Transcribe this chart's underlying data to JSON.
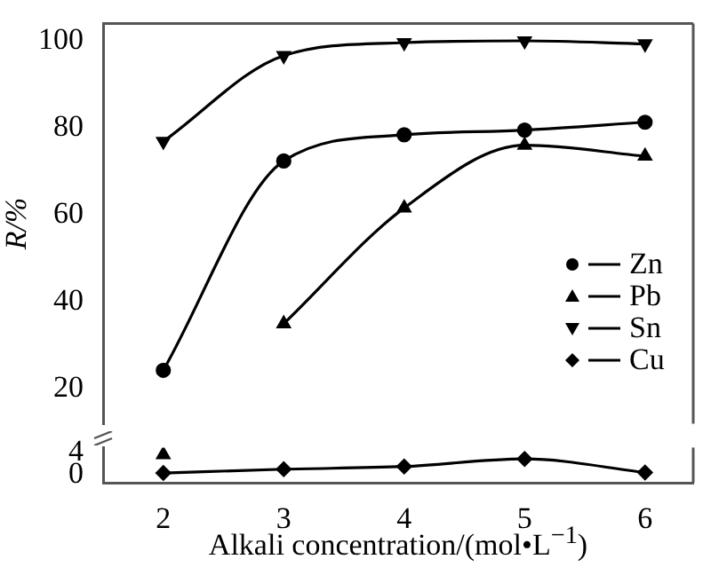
{
  "chart_data": [
    {
      "type": "line",
      "ylabel": "R/%",
      "xlim": [
        1.5,
        6.4
      ],
      "ylim": [
        12,
        104
      ],
      "yticks": [
        20,
        40,
        60,
        80,
        100
      ],
      "tick_labels": "y",
      "grid": false,
      "legend": "right",
      "series": [
        {
          "name": "Zn",
          "color": "#000000",
          "marker": "circle",
          "x": [
            2,
            3,
            4,
            5,
            6
          ],
          "values": [
            24.3,
            72.4,
            78.4,
            79.5,
            81.3
          ]
        },
        {
          "name": "Pb",
          "color": "#000000",
          "marker": "triangle",
          "x": [
            3,
            4,
            5,
            6
          ],
          "values": [
            35,
            61.6,
            76,
            73.5
          ]
        },
        {
          "name": "Sn",
          "color": "#000000",
          "marker": "triangle-down",
          "x": [
            2,
            3,
            4,
            5,
            6
          ],
          "values": [
            76.9,
            96.6,
            99.6,
            100,
            99.3
          ]
        }
      ]
    },
    {
      "type": "line",
      "xlabel": "Alkali concentration/(mol•L$^{−1}$)",
      "xlim": [
        1.5,
        6.4
      ],
      "xticks": [
        2,
        3,
        4,
        5,
        6
      ],
      "ylim": [
        -1.5,
        5
      ],
      "yticks": [
        0,
        4
      ],
      "grid": false,
      "series": [
        {
          "color": "#000000",
          "marker": "triangle",
          "x": [
            2
          ],
          "values": [
            3.7
          ]
        },
        {
          "name": "Cu",
          "color": "#000000",
          "marker": "diamond",
          "x": [
            2,
            3,
            4,
            5,
            6
          ],
          "values": [
            0.3,
            1.0,
            1.5,
            2.9,
            0.4
          ]
        }
      ]
    }
  ]
}
